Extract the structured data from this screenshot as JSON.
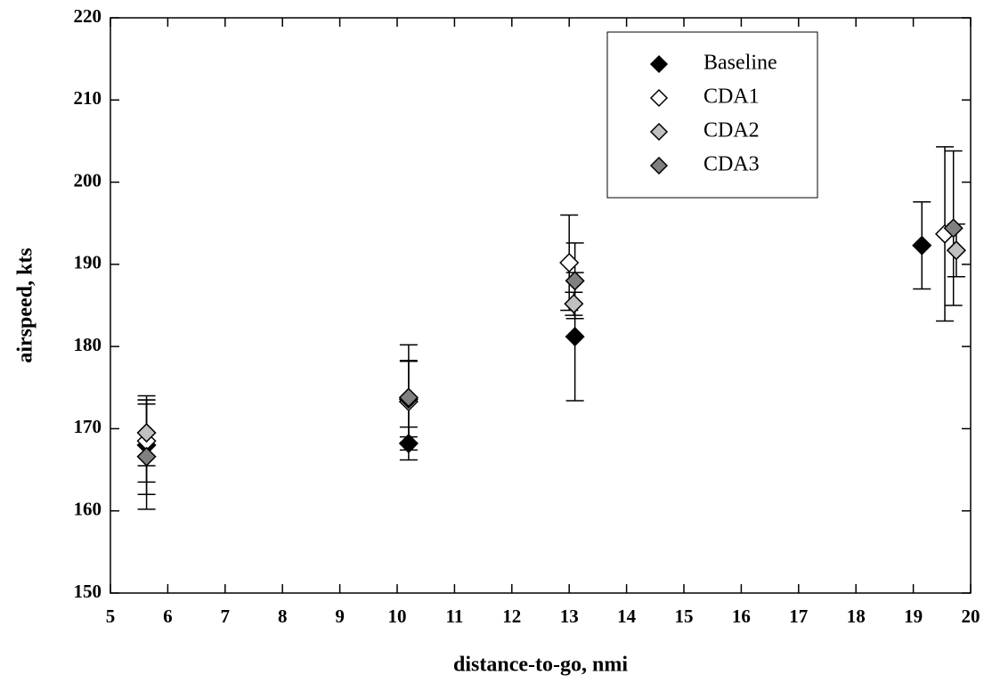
{
  "chart_data": {
    "type": "scatter",
    "x_label": "distance-to-go, nmi",
    "y_label": "airspeed, kts",
    "xlim": [
      5,
      20
    ],
    "xticks": [
      5,
      6,
      7,
      8,
      9,
      10,
      11,
      12,
      13,
      14,
      15,
      16,
      17,
      18,
      19,
      20
    ],
    "ylim": [
      150,
      220
    ],
    "yticks": [
      150,
      160,
      170,
      180,
      190,
      200,
      210,
      220
    ],
    "legend": "upper right",
    "grid": false,
    "series": [
      {
        "name": "Baseline",
        "color": "#000000",
        "x": [
          5.63,
          10.2,
          13.1,
          19.15
        ],
        "values": [
          168,
          168.2,
          181.2,
          192.3
        ],
        "errors": [
          6,
          2,
          7.8,
          5.3
        ]
      },
      {
        "name": "CDA1",
        "color": "#ffffff",
        "x": [
          5.63,
          10.2,
          13.0,
          19.55
        ],
        "values": [
          168.5,
          173.3,
          190.2,
          193.7
        ],
        "errors": [
          5,
          5,
          5.8,
          10.6
        ]
      },
      {
        "name": "CDA2",
        "color": "#c0c0c0",
        "x": [
          5.63,
          10.2,
          13.08,
          19.75
        ],
        "values": [
          169.5,
          173.6,
          185.2,
          191.7
        ],
        "errors": [
          4,
          4.6,
          1.4,
          3.2
        ]
      },
      {
        "name": "CDA3",
        "color": "#808080",
        "x": [
          5.63,
          10.2,
          13.1,
          19.7
        ],
        "values": [
          166.6,
          173.8,
          188,
          194.4
        ],
        "errors": [
          6.4,
          6.4,
          4.6,
          9.4
        ]
      }
    ]
  }
}
